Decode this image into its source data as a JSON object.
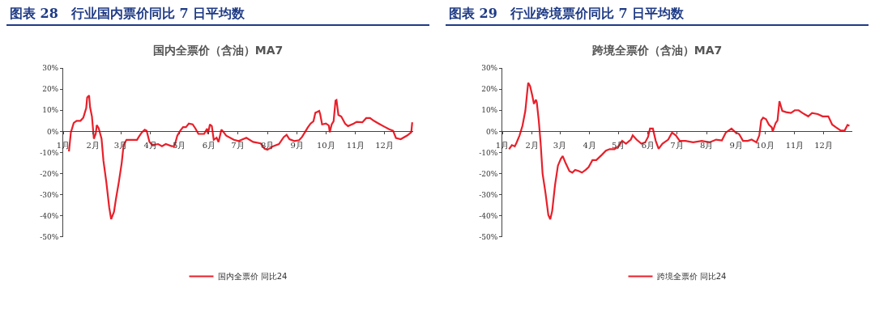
{
  "chart_data": [
    {
      "type": "line",
      "title": "图表 28　行业国内票价同比 7 日平均数",
      "subtitle": "国内全票价（含油）MA7",
      "x": [
        "--01-07",
        "--01-09",
        "--01-12",
        "--01-15",
        "--01-19",
        "--01-22",
        "--01-25",
        "--01-26",
        "--01-28",
        "--01-29",
        "--01-31",
        "--02-02",
        "--02-04",
        "--02-05",
        "--02-07",
        "--02-10",
        "--02-12",
        "--02-15",
        "--02-18",
        "--02-20",
        "--02-23",
        "--02-25",
        "--02-28",
        "--03-02",
        "--03-04",
        "--03-07",
        "--03-13",
        "--03-18",
        "--03-20",
        "--03-23",
        "--03-26",
        "--03-28",
        "--03-31",
        "--04-03",
        "--04-09",
        "--04-13",
        "--04-17",
        "--04-23",
        "--04-26",
        "--04-29",
        "--05-02",
        "--05-05",
        "--05-08",
        "--05-11",
        "--05-15",
        "--05-18",
        "--05-21",
        "--05-27",
        "--05-30",
        "--05-31",
        "--06-02",
        "--06-04",
        "--06-06",
        "--06-09",
        "--06-11",
        "--06-14",
        "--06-16",
        "--06-19",
        "--06-27",
        "--07-02",
        "--07-10",
        "--07-17",
        "--07-25",
        "--07-29",
        "--08-01",
        "--08-07",
        "--08-13",
        "--08-18",
        "--08-21",
        "--08-24",
        "--08-29",
        "--09-03",
        "--09-06",
        "--09-09",
        "--09-12",
        "--09-15",
        "--09-18",
        "--09-20",
        "--09-22",
        "--09-24",
        "--09-25",
        "--09-27",
        "--10-01",
        "--10-04",
        "--10-05",
        "--10-07",
        "--10-09",
        "--10-11",
        "--10-12",
        "--10-14",
        "--10-17",
        "--10-21",
        "--10-24",
        "--10-30",
        "--11-02",
        "--11-08",
        "--11-12",
        "--11-16",
        "--11-20",
        "--11-25",
        "--12-01",
        "--12-06",
        "--12-10",
        "--12-13",
        "--12-18",
        "--12-25",
        "--12-29",
        "--12-30"
      ],
      "series": [
        {
          "name": "国内全票价 同比24",
          "color": "#e8202a",
          "values": [
            -9.5,
            -0.5,
            4,
            5,
            5,
            6.5,
            11,
            16,
            17,
            11.5,
            7,
            -3.5,
            -1,
            3,
            1.5,
            -3.5,
            -14,
            -24,
            -36,
            -41.5,
            -38,
            -32,
            -24,
            -15,
            -6.5,
            -4,
            -4,
            -4,
            -2.5,
            -0.5,
            0.8,
            0.3,
            -5,
            -6.5,
            -6,
            -7,
            -6,
            -7,
            -7,
            -2,
            0.3,
            2,
            2,
            3.7,
            3.3,
            1.3,
            -1.2,
            -1.2,
            1.3,
            -1.2,
            3.3,
            2.5,
            -4,
            -3,
            -5,
            0.8,
            -0.2,
            -2,
            -4,
            -4.6,
            -3,
            -5,
            -5.7,
            -8.2,
            -8.7,
            -7,
            -6,
            -2.7,
            -1.6,
            -3.7,
            -4.6,
            -4.2,
            -2.7,
            -0.5,
            1.8,
            3.7,
            4.8,
            8.8,
            9.2,
            9.7,
            8.2,
            3.3,
            3.7,
            2.8,
            -0.4,
            3.3,
            4.8,
            14.5,
            14.8,
            7.8,
            7,
            3.7,
            2.5,
            3.7,
            4.5,
            4.3,
            6.3,
            6.3,
            5,
            3.7,
            2.2,
            1,
            0.3,
            -3.1,
            -3.7,
            -1.9,
            -0.4,
            4.3
          ]
        }
      ],
      "xlim": [
        "--01-01",
        "--12-31"
      ],
      "xticks": [
        {
          "value": "--01-01",
          "label": "1月"
        },
        {
          "value": "--02-01",
          "label": "2月"
        },
        {
          "value": "--03-01",
          "label": "3月"
        },
        {
          "value": "--04-01",
          "label": "4月"
        },
        {
          "value": "--05-01",
          "label": "5月"
        },
        {
          "value": "--06-01",
          "label": "6月"
        },
        {
          "value": "--07-01",
          "label": "7月"
        },
        {
          "value": "--08-01",
          "label": "8月"
        },
        {
          "value": "--09-01",
          "label": "9月"
        },
        {
          "value": "--10-01",
          "label": "10月"
        },
        {
          "value": "--11-01",
          "label": "11月"
        },
        {
          "value": "--12-01",
          "label": "12月"
        }
      ],
      "ylim": [
        -50,
        30
      ],
      "yticks": [
        {
          "value": -50,
          "label": "-50%"
        },
        {
          "value": -40,
          "label": "-40%"
        },
        {
          "value": -30,
          "label": "-30%"
        },
        {
          "value": -20,
          "label": "-20%"
        },
        {
          "value": -10,
          "label": "-10%"
        },
        {
          "value": 0,
          "label": "0%"
        },
        {
          "value": 10,
          "label": "10%"
        },
        {
          "value": 20,
          "label": "20%"
        },
        {
          "value": 30,
          "label": "30%"
        }
      ],
      "grid": false,
      "legend": "bottom",
      "marker": "none",
      "line_style": "solid"
    },
    {
      "type": "line",
      "title": "图表 29　行业跨境票价同比 7 日平均数",
      "subtitle": "跨境全票价（含油）MA7",
      "x": [
        "--01-08",
        "--01-11",
        "--01-14",
        "--01-16",
        "--01-19",
        "--01-22",
        "--01-25",
        "--01-27",
        "--01-28",
        "--01-30",
        "--02-01",
        "--02-03",
        "--02-05",
        "--02-06",
        "--02-08",
        "--02-10",
        "--02-12",
        "--02-15",
        "--02-18",
        "--02-20",
        "--02-22",
        "--02-25",
        "--02-28",
        "--03-02",
        "--03-04",
        "--03-07",
        "--03-11",
        "--03-14",
        "--03-17",
        "--03-21",
        "--03-24",
        "--03-28",
        "--03-31",
        "--04-04",
        "--04-08",
        "--04-14",
        "--04-18",
        "--04-22",
        "--04-27",
        "--05-01",
        "--05-05",
        "--05-09",
        "--05-14",
        "--05-16",
        "--05-20",
        "--05-25",
        "--05-29",
        "--06-01",
        "--06-03",
        "--06-06",
        "--06-09",
        "--06-12",
        "--06-16",
        "--06-22",
        "--06-26",
        "--06-30",
        "--07-04",
        "--07-10",
        "--07-18",
        "--07-27",
        "--08-04",
        "--08-11",
        "--08-17",
        "--08-21",
        "--08-27",
        "--08-31",
        "--09-04",
        "--09-08",
        "--09-13",
        "--09-17",
        "--09-22",
        "--09-25",
        "--09-27",
        "--09-29",
        "--10-02",
        "--10-05",
        "--10-08",
        "--10-09",
        "--10-12",
        "--10-14",
        "--10-16",
        "--10-19",
        "--10-23",
        "--10-28",
        "--11-01",
        "--11-05",
        "--11-09",
        "--11-15",
        "--11-19",
        "--11-25",
        "--11-30",
        "--12-06",
        "--12-10",
        "--12-14",
        "--12-19",
        "--12-23",
        "--12-26",
        "--12-28"
      ],
      "series": [
        {
          "name": "跨境全票价 同比24",
          "color": "#e8202a",
          "values": [
            -8.4,
            -6.5,
            -7.1,
            -5.2,
            -1.9,
            2.6,
            9.7,
            18.8,
            23,
            21.4,
            17.5,
            13,
            15,
            13.6,
            5.2,
            -5.8,
            -20,
            -29,
            -39.6,
            -41.6,
            -37.7,
            -25.3,
            -16.2,
            -13,
            -11.7,
            -15,
            -18.8,
            -19.5,
            -18.2,
            -18.8,
            -19.5,
            -18.2,
            -16.9,
            -13.6,
            -13.6,
            -11,
            -9.1,
            -8.4,
            -8.4,
            -7.1,
            -4.5,
            -5.8,
            -3.9,
            -1.9,
            -3.9,
            -5.8,
            -5.2,
            -2.6,
            1.3,
            1.3,
            -4.5,
            -8.2,
            -5.8,
            -3.9,
            -0.6,
            -1.9,
            -4.5,
            -4.5,
            -5.2,
            -4.5,
            -5.2,
            -3.9,
            -4.3,
            -0.6,
            1.3,
            -0.4,
            -1.3,
            -4.5,
            -4.5,
            -3.9,
            -5.2,
            -1.9,
            5.2,
            6.5,
            5.8,
            3.2,
            1.9,
            0,
            3.9,
            5.2,
            14.3,
            9.7,
            9.1,
            8.7,
            10,
            10,
            8.7,
            7.1,
            8.7,
            8.2,
            7.1,
            7.1,
            3.2,
            1.9,
            0.4,
            0.4,
            3,
            2.6
          ]
        }
      ],
      "xlim": [
        "--01-01",
        "--12-31"
      ],
      "xticks": [
        {
          "value": "--01-01",
          "label": "1月"
        },
        {
          "value": "--02-01",
          "label": "2月"
        },
        {
          "value": "--03-01",
          "label": "3月"
        },
        {
          "value": "--04-01",
          "label": "4月"
        },
        {
          "value": "--05-01",
          "label": "5月"
        },
        {
          "value": "--06-01",
          "label": "6月"
        },
        {
          "value": "--07-01",
          "label": "7月"
        },
        {
          "value": "--08-01",
          "label": "8月"
        },
        {
          "value": "--09-01",
          "label": "9月"
        },
        {
          "value": "--10-01",
          "label": "10月"
        },
        {
          "value": "--11-01",
          "label": "11月"
        },
        {
          "value": "--12-01",
          "label": "12月"
        }
      ],
      "ylim": [
        -50,
        30
      ],
      "yticks": [
        {
          "value": -50,
          "label": "-50%"
        },
        {
          "value": -40,
          "label": "-40%"
        },
        {
          "value": -30,
          "label": "-30%"
        },
        {
          "value": -20,
          "label": "-20%"
        },
        {
          "value": -10,
          "label": "-10%"
        },
        {
          "value": 0,
          "label": "0%"
        },
        {
          "value": 10,
          "label": "10%"
        },
        {
          "value": 20,
          "label": "20%"
        },
        {
          "value": 30,
          "label": "30%"
        }
      ],
      "grid": false,
      "legend": "bottom",
      "marker": "none",
      "line_style": "solid"
    }
  ]
}
